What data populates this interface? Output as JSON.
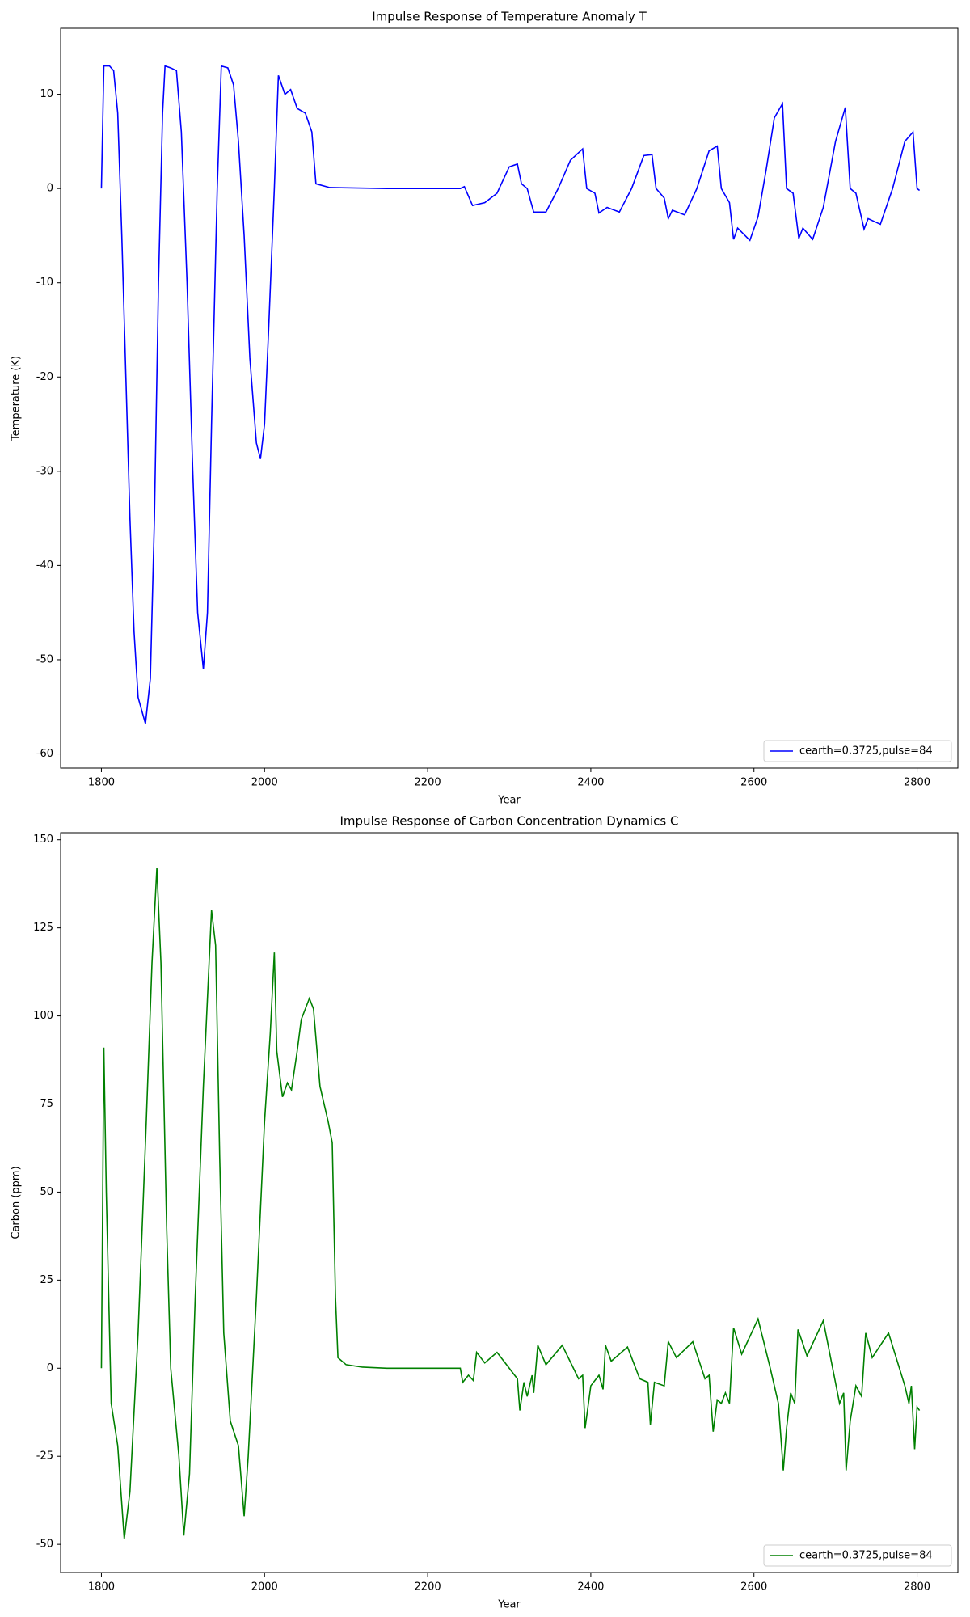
{
  "chart_data": [
    {
      "type": "line",
      "title": "Impulse Response of Temperature Anomaly T",
      "x_label": "Year",
      "y_label": "Temperature (K)",
      "xlim": [
        1750,
        2850
      ],
      "ylim": [
        -61.5,
        17
      ],
      "xticks": [
        1800,
        2000,
        2200,
        2400,
        2600,
        2800
      ],
      "yticks": [
        -60,
        -50,
        -40,
        -30,
        -20,
        -10,
        0,
        10
      ],
      "legend": "lower right",
      "x": [
        1800,
        1803,
        1810,
        1815,
        1820,
        1825,
        1830,
        1835,
        1840,
        1845,
        1854,
        1860,
        1865,
        1870,
        1875,
        1878,
        1885,
        1892,
        1898,
        1905,
        1912,
        1918,
        1925,
        1930,
        1935,
        1942,
        1947,
        1955,
        1962,
        1968,
        1975,
        1982,
        1990,
        1995,
        2000,
        2005,
        2012,
        2017,
        2025,
        2032,
        2040,
        2050,
        2058,
        2063,
        2080,
        2150,
        2240,
        2245,
        2255,
        2270,
        2285,
        2300,
        2310,
        2315,
        2322,
        2330,
        2345,
        2360,
        2375,
        2390,
        2395,
        2405,
        2410,
        2420,
        2435,
        2450,
        2465,
        2475,
        2480,
        2490,
        2495,
        2500,
        2515,
        2530,
        2545,
        2555,
        2560,
        2570,
        2575,
        2580,
        2595,
        2605,
        2615,
        2625,
        2635,
        2640,
        2648,
        2655,
        2660,
        2672,
        2685,
        2700,
        2712,
        2718,
        2725,
        2735,
        2740,
        2755,
        2770,
        2785,
        2795,
        2800,
        2803
      ],
      "series": [
        {
          "name": "cearth=0.3725,pulse=84",
          "color": "#0000ff",
          "values": [
            0,
            13,
            13,
            12.5,
            8,
            -5,
            -20,
            -35,
            -47,
            -54,
            -56.8,
            -52,
            -35,
            -10,
            8,
            13,
            12.8,
            12.5,
            6,
            -10,
            -30,
            -45,
            -51,
            -45,
            -25,
            0,
            13,
            12.8,
            11,
            5,
            -5,
            -18,
            -27,
            -28.7,
            -25,
            -15,
            0,
            12,
            10,
            10.5,
            8.5,
            8,
            6,
            0.5,
            0.1,
            0,
            0,
            0.2,
            -1.8,
            -1.5,
            -0.5,
            2.3,
            2.6,
            0.5,
            0,
            -2.5,
            -2.5,
            0,
            3,
            4.2,
            0,
            -0.5,
            -2.6,
            -2,
            -2.5,
            0,
            3.5,
            3.6,
            0,
            -1,
            -3.2,
            -2.3,
            -2.8,
            0,
            4,
            4.5,
            0,
            -1.5,
            -5.4,
            -4.2,
            -5.5,
            -3,
            2,
            7.5,
            9,
            0,
            -0.5,
            -5.3,
            -4.2,
            -5.4,
            -2,
            5,
            8.6,
            0,
            -0.5,
            -4.3,
            -3.2,
            -3.8,
            0,
            5,
            6,
            0,
            -0.2
          ]
        }
      ]
    },
    {
      "type": "line",
      "title": "Impulse Response of Carbon Concentration Dynamics C",
      "x_label": "Year",
      "y_label": "Carbon (ppm)",
      "xlim": [
        1750,
        2850
      ],
      "ylim": [
        -58,
        152
      ],
      "xticks": [
        1800,
        2000,
        2200,
        2400,
        2600,
        2800
      ],
      "yticks": [
        -50,
        -25,
        0,
        25,
        50,
        75,
        100,
        125,
        150
      ],
      "legend": "lower right",
      "x": [
        1800,
        1803,
        1806,
        1812,
        1820,
        1828,
        1835,
        1845,
        1855,
        1862,
        1868,
        1873,
        1880,
        1885,
        1895,
        1901,
        1908,
        1915,
        1925,
        1935,
        1940,
        1945,
        1950,
        1958,
        1968,
        1975,
        1980,
        1990,
        2000,
        2007,
        2012,
        2015,
        2022,
        2028,
        2033,
        2040,
        2045,
        2055,
        2060,
        2068,
        2078,
        2083,
        2087,
        2090,
        2100,
        2120,
        2150,
        2240,
        2243,
        2250,
        2256,
        2260,
        2270,
        2285,
        2300,
        2310,
        2313,
        2318,
        2322,
        2328,
        2330,
        2335,
        2345,
        2365,
        2385,
        2390,
        2393,
        2400,
        2410,
        2415,
        2418,
        2425,
        2445,
        2460,
        2470,
        2473,
        2478,
        2490,
        2495,
        2505,
        2525,
        2540,
        2545,
        2550,
        2555,
        2560,
        2565,
        2570,
        2575,
        2585,
        2605,
        2620,
        2630,
        2636,
        2640,
        2645,
        2650,
        2654,
        2665,
        2685,
        2705,
        2710,
        2713,
        2718,
        2725,
        2732,
        2737,
        2745,
        2765,
        2785,
        2790,
        2793,
        2797,
        2800,
        2803
      ],
      "series": [
        {
          "name": "cearth=0.3725,pulse=84",
          "color": "#008000",
          "values": [
            0,
            91,
            50,
            -10,
            -22,
            -48.5,
            -35,
            10,
            70,
            115,
            142,
            115,
            40,
            0,
            -25,
            -47.5,
            -30,
            20,
            80,
            130,
            120,
            60,
            10,
            -15,
            -22,
            -42,
            -25,
            20,
            70,
            95,
            118,
            90,
            77,
            81,
            79,
            90,
            99,
            105,
            102,
            80,
            70,
            64,
            20,
            3,
            1,
            0.3,
            0,
            0,
            -4,
            -2,
            -3.5,
            4.5,
            1.5,
            4.5,
            0,
            -3,
            -12,
            -4,
            -8,
            -2,
            -7,
            6.5,
            1,
            6.5,
            -3,
            -2,
            -17,
            -5,
            -2,
            -6,
            6.5,
            2,
            6,
            -3,
            -4,
            -16,
            -4,
            -5,
            7.5,
            3,
            7.5,
            -3,
            -2,
            -18,
            -9,
            -10,
            -7,
            -10,
            11.5,
            4,
            14,
            0,
            -10,
            -29,
            -17,
            -7,
            -10,
            11,
            3.5,
            13.5,
            -10,
            -7,
            -29,
            -15,
            -5,
            -8,
            10,
            3,
            10,
            -5,
            -10,
            -5,
            -23,
            -11,
            -12
          ]
        }
      ]
    }
  ]
}
